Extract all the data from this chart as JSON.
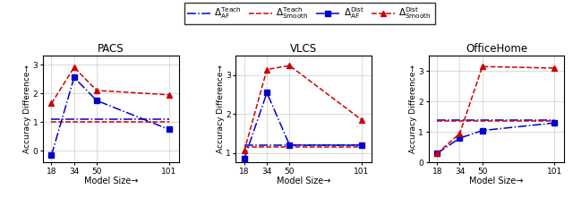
{
  "x": [
    18,
    34,
    50,
    101
  ],
  "pacs": {
    "teach_af": [
      1.1,
      1.1,
      1.1,
      1.1
    ],
    "teach_smooth": [
      1.0,
      1.0,
      1.0,
      1.0
    ],
    "dist_af": [
      -0.15,
      2.55,
      1.75,
      0.75
    ],
    "dist_smooth": [
      1.65,
      2.9,
      2.1,
      1.95
    ]
  },
  "vlcs": {
    "teach_af": [
      1.2,
      1.2,
      1.2,
      1.2
    ],
    "teach_smooth": [
      1.15,
      1.15,
      1.15,
      1.15
    ],
    "dist_af": [
      0.85,
      2.55,
      1.2,
      1.2
    ],
    "dist_smooth": [
      1.05,
      3.15,
      3.25,
      1.85
    ]
  },
  "officehome": {
    "teach_af": [
      1.4,
      1.4,
      1.4,
      1.4
    ],
    "teach_smooth": [
      1.35,
      1.35,
      1.35,
      1.35
    ],
    "dist_af": [
      0.3,
      0.8,
      1.05,
      1.3
    ],
    "dist_smooth": [
      0.3,
      0.95,
      3.15,
      3.1
    ]
  },
  "titles": [
    "PACS",
    "VLCS",
    "OfficeHome"
  ],
  "xlim": [
    12,
    108
  ],
  "xticks": [
    18,
    34,
    50,
    101
  ],
  "blue_color": "#0000cc",
  "red_color": "#cc0000",
  "legend_labels": [
    "$\\Delta^{\\mathrm{Teach}}_{\\mathrm{AF}}$",
    "$\\Delta^{\\mathrm{Teach}}_{\\mathrm{Smooth}}$",
    "$\\Delta^{\\mathrm{Dist}}_{\\mathrm{AF}}$",
    "$\\Delta^{\\mathrm{Dist}}_{\\mathrm{Smooth}}$"
  ],
  "pacs_ylim": [
    -0.4,
    3.3
  ],
  "vlcs_ylim": [
    0.75,
    3.5
  ],
  "officehome_ylim": [
    0.0,
    3.5
  ],
  "pacs_yticks": [
    0,
    1,
    2,
    3
  ],
  "vlcs_yticks": [
    1,
    2,
    3
  ],
  "officehome_yticks": [
    0,
    1,
    2,
    3
  ],
  "ylabel": "Accuracy Difference→",
  "xlabel": "Model Size→"
}
